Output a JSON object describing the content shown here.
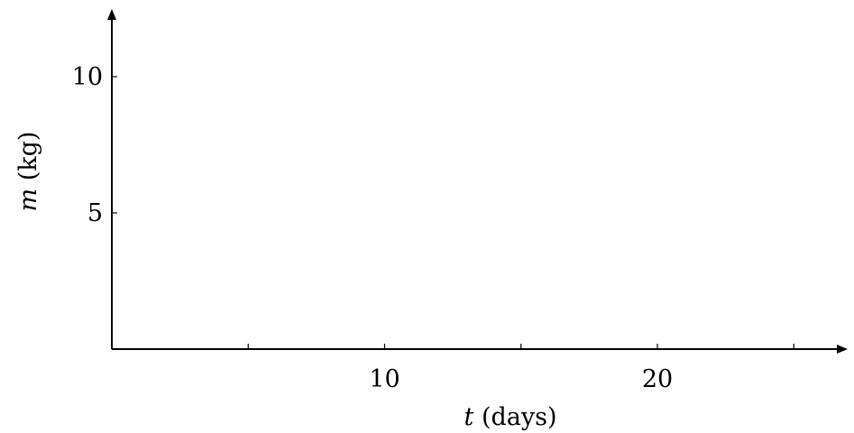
{
  "chart_data": {
    "type": "line",
    "title": "",
    "xlabel": {
      "var": "t",
      "unit": " (days)"
    },
    "ylabel": {
      "var": "m",
      "unit": " (kg)"
    },
    "xlim": [
      0,
      27
    ],
    "ylim": [
      0,
      12
    ],
    "x_ticks": [
      5,
      10,
      15,
      20,
      25
    ],
    "x_tick_labels": [
      "",
      "10",
      "",
      "20",
      ""
    ],
    "y_ticks": [
      5,
      10
    ],
    "y_tick_labels": [
      "5",
      "10"
    ],
    "series": [],
    "grid": false,
    "legend": "none"
  }
}
